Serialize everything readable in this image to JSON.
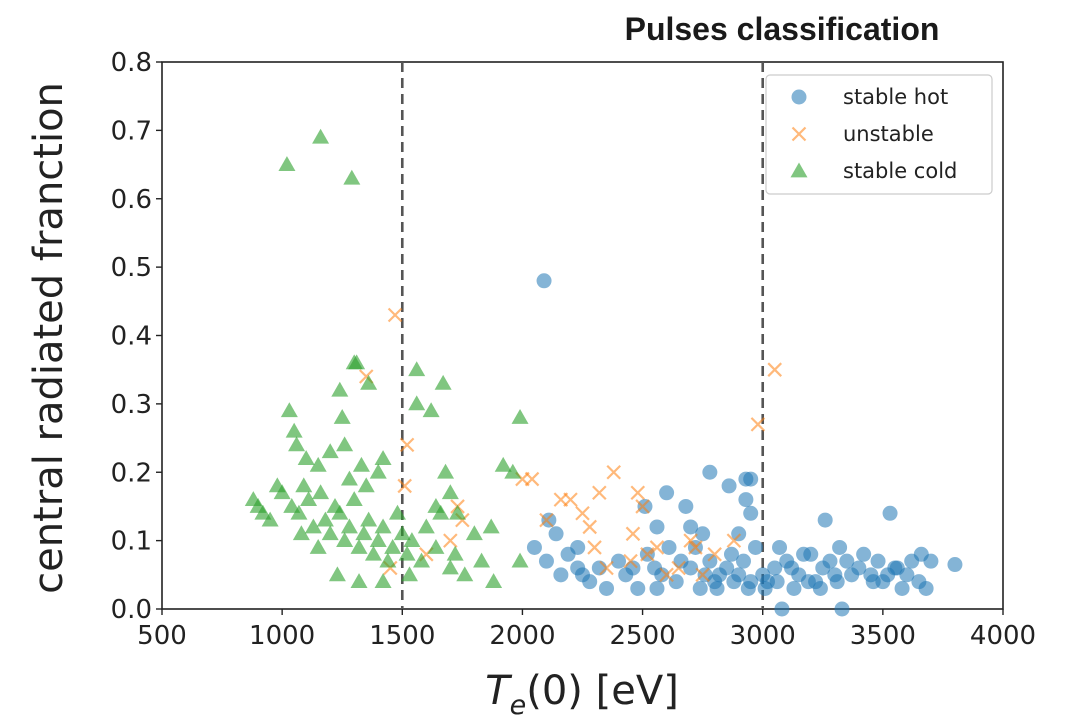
{
  "chart_data": {
    "type": "scatter",
    "title": "Pulses classification",
    "xlabel_main": "T",
    "xlabel_sub": "e",
    "xlabel_rest": "(0) [eV]",
    "ylabel": "central radiated franction",
    "xlim": [
      500,
      4000
    ],
    "ylim": [
      0.0,
      0.8
    ],
    "xticks": [
      500,
      1000,
      1500,
      2000,
      2500,
      3000,
      3500,
      4000
    ],
    "yticks": [
      0.0,
      0.1,
      0.2,
      0.3,
      0.4,
      0.5,
      0.6,
      0.7,
      0.8
    ],
    "ytick_labels": [
      "0.0",
      "0.1",
      "0.2",
      "0.3",
      "0.4",
      "0.5",
      "0.6",
      "0.7",
      "0.8"
    ],
    "vlines": [
      1500,
      3000
    ],
    "grid": false,
    "legend_position": "top-right",
    "series": [
      {
        "name": "stable hot",
        "marker": "circle",
        "color": "#1f77b4",
        "points": [
          [
            2090,
            0.48
          ],
          [
            2600,
            0.17
          ],
          [
            2780,
            0.2
          ],
          [
            2930,
            0.19
          ],
          [
            2950,
            0.19
          ],
          [
            2510,
            0.15
          ],
          [
            2680,
            0.15
          ],
          [
            2950,
            0.14
          ],
          [
            3530,
            0.14
          ],
          [
            2860,
            0.18
          ],
          [
            2930,
            0.16
          ],
          [
            2560,
            0.12
          ],
          [
            2700,
            0.12
          ],
          [
            2750,
            0.11
          ],
          [
            2900,
            0.11
          ],
          [
            3260,
            0.13
          ],
          [
            2110,
            0.13
          ],
          [
            2140,
            0.11
          ],
          [
            2050,
            0.09
          ],
          [
            2230,
            0.09
          ],
          [
            2250,
            0.05
          ],
          [
            2320,
            0.06
          ],
          [
            2400,
            0.07
          ],
          [
            2460,
            0.06
          ],
          [
            2520,
            0.08
          ],
          [
            2580,
            0.05
          ],
          [
            2640,
            0.04
          ],
          [
            2700,
            0.06
          ],
          [
            2760,
            0.05
          ],
          [
            2800,
            0.04
          ],
          [
            2850,
            0.06
          ],
          [
            2900,
            0.05
          ],
          [
            2950,
            0.04
          ],
          [
            3000,
            0.05
          ],
          [
            3050,
            0.06
          ],
          [
            3100,
            0.07
          ],
          [
            3150,
            0.05
          ],
          [
            3200,
            0.08
          ],
          [
            3250,
            0.06
          ],
          [
            3300,
            0.05
          ],
          [
            3350,
            0.07
          ],
          [
            3400,
            0.06
          ],
          [
            3450,
            0.05
          ],
          [
            3500,
            0.04
          ],
          [
            3550,
            0.06
          ],
          [
            3600,
            0.05
          ],
          [
            3650,
            0.04
          ],
          [
            3700,
            0.07
          ],
          [
            3800,
            0.065
          ],
          [
            3680,
            0.03
          ],
          [
            2100,
            0.07
          ],
          [
            2160,
            0.05
          ],
          [
            2190,
            0.08
          ],
          [
            2280,
            0.04
          ],
          [
            2350,
            0.03
          ],
          [
            2430,
            0.05
          ],
          [
            2480,
            0.03
          ],
          [
            2550,
            0.06
          ],
          [
            2610,
            0.09
          ],
          [
            2660,
            0.07
          ],
          [
            2720,
            0.09
          ],
          [
            2780,
            0.07
          ],
          [
            2820,
            0.05
          ],
          [
            2870,
            0.08
          ],
          [
            2920,
            0.07
          ],
          [
            2970,
            0.09
          ],
          [
            3020,
            0.04
          ],
          [
            3070,
            0.09
          ],
          [
            3120,
            0.06
          ],
          [
            3170,
            0.08
          ],
          [
            3220,
            0.04
          ],
          [
            3280,
            0.07
          ],
          [
            3320,
            0.09
          ],
          [
            3370,
            0.05
          ],
          [
            3420,
            0.08
          ],
          [
            3480,
            0.07
          ],
          [
            3520,
            0.05
          ],
          [
            3580,
            0.03
          ],
          [
            3620,
            0.07
          ],
          [
            3660,
            0.08
          ],
          [
            2740,
            0.03
          ],
          [
            2810,
            0.03
          ],
          [
            2880,
            0.04
          ],
          [
            2940,
            0.03
          ],
          [
            3010,
            0.03
          ],
          [
            3060,
            0.04
          ],
          [
            3130,
            0.03
          ],
          [
            3190,
            0.04
          ],
          [
            3240,
            0.03
          ],
          [
            3310,
            0.04
          ],
          [
            3080,
            0.0
          ],
          [
            3330,
            0.0
          ],
          [
            2230,
            0.06
          ],
          [
            2560,
            0.03
          ],
          [
            3460,
            0.04
          ],
          [
            3560,
            0.06
          ]
        ]
      },
      {
        "name": "unstable",
        "marker": "x",
        "color": "#ff7f0e",
        "points": [
          [
            1470,
            0.43
          ],
          [
            1350,
            0.34
          ],
          [
            3050,
            0.35
          ],
          [
            2980,
            0.27
          ],
          [
            1520,
            0.24
          ],
          [
            1510,
            0.18
          ],
          [
            2000,
            0.19
          ],
          [
            2040,
            0.19
          ],
          [
            2380,
            0.2
          ],
          [
            2160,
            0.16
          ],
          [
            2200,
            0.16
          ],
          [
            2320,
            0.17
          ],
          [
            2480,
            0.17
          ],
          [
            2500,
            0.15
          ],
          [
            2250,
            0.14
          ],
          [
            2100,
            0.13
          ],
          [
            1750,
            0.13
          ],
          [
            1730,
            0.15
          ],
          [
            1700,
            0.1
          ],
          [
            2280,
            0.12
          ],
          [
            2300,
            0.09
          ],
          [
            2460,
            0.11
          ],
          [
            2560,
            0.09
          ],
          [
            2520,
            0.08
          ],
          [
            2650,
            0.06
          ],
          [
            2700,
            0.1
          ],
          [
            2720,
            0.09
          ],
          [
            2600,
            0.05
          ],
          [
            1450,
            0.06
          ],
          [
            1600,
            0.08
          ],
          [
            2350,
            0.06
          ],
          [
            2450,
            0.07
          ],
          [
            2750,
            0.05
          ],
          [
            2800,
            0.08
          ],
          [
            2880,
            0.1
          ]
        ]
      },
      {
        "name": "stable cold",
        "marker": "triangle",
        "color": "#2ca02c",
        "points": [
          [
            1020,
            0.65
          ],
          [
            1160,
            0.69
          ],
          [
            1290,
            0.63
          ],
          [
            1300,
            0.36
          ],
          [
            1310,
            0.36
          ],
          [
            1360,
            0.33
          ],
          [
            1560,
            0.35
          ],
          [
            1670,
            0.33
          ],
          [
            1560,
            0.3
          ],
          [
            1620,
            0.29
          ],
          [
            1030,
            0.29
          ],
          [
            1050,
            0.26
          ],
          [
            1250,
            0.28
          ],
          [
            1240,
            0.32
          ],
          [
            1990,
            0.28
          ],
          [
            1060,
            0.24
          ],
          [
            1100,
            0.22
          ],
          [
            1150,
            0.21
          ],
          [
            1200,
            0.23
          ],
          [
            1260,
            0.24
          ],
          [
            1330,
            0.21
          ],
          [
            1400,
            0.2
          ],
          [
            1420,
            0.22
          ],
          [
            1680,
            0.2
          ],
          [
            1920,
            0.21
          ],
          [
            1960,
            0.2
          ],
          [
            880,
            0.16
          ],
          [
            900,
            0.15
          ],
          [
            920,
            0.14
          ],
          [
            950,
            0.13
          ],
          [
            980,
            0.18
          ],
          [
            1000,
            0.17
          ],
          [
            1040,
            0.15
          ],
          [
            1070,
            0.14
          ],
          [
            1090,
            0.18
          ],
          [
            1110,
            0.16
          ],
          [
            1130,
            0.12
          ],
          [
            1160,
            0.17
          ],
          [
            1180,
            0.13
          ],
          [
            1200,
            0.11
          ],
          [
            1220,
            0.15
          ],
          [
            1240,
            0.14
          ],
          [
            1260,
            0.1
          ],
          [
            1280,
            0.12
          ],
          [
            1300,
            0.16
          ],
          [
            1320,
            0.09
          ],
          [
            1340,
            0.11
          ],
          [
            1360,
            0.13
          ],
          [
            1380,
            0.08
          ],
          [
            1400,
            0.1
          ],
          [
            1420,
            0.12
          ],
          [
            1440,
            0.07
          ],
          [
            1460,
            0.09
          ],
          [
            1480,
            0.14
          ],
          [
            1500,
            0.11
          ],
          [
            1520,
            0.08
          ],
          [
            1540,
            0.1
          ],
          [
            1580,
            0.07
          ],
          [
            1600,
            0.12
          ],
          [
            1640,
            0.09
          ],
          [
            1660,
            0.14
          ],
          [
            1700,
            0.06
          ],
          [
            1720,
            0.08
          ],
          [
            1760,
            0.05
          ],
          [
            1800,
            0.11
          ],
          [
            1830,
            0.07
          ],
          [
            1870,
            0.12
          ],
          [
            1880,
            0.04
          ],
          [
            1990,
            0.07
          ],
          [
            1230,
            0.05
          ],
          [
            1320,
            0.04
          ],
          [
            1420,
            0.04
          ],
          [
            1530,
            0.05
          ],
          [
            1150,
            0.09
          ],
          [
            1080,
            0.11
          ],
          [
            1280,
            0.19
          ],
          [
            1350,
            0.18
          ],
          [
            1640,
            0.15
          ],
          [
            1700,
            0.17
          ],
          [
            1730,
            0.14
          ]
        ]
      }
    ]
  }
}
